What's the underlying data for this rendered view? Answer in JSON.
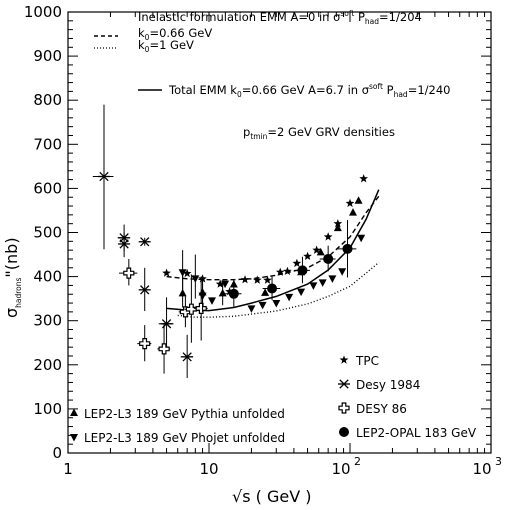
{
  "chart_data": {
    "type": "scatter",
    "xscale": "log",
    "xlim": [
      1,
      1000
    ],
    "ylim": [
      0,
      1000
    ],
    "xticks": [
      "1",
      "10",
      "10",
      "10"
    ],
    "xtick_exp": [
      "",
      "",
      "2",
      "3"
    ],
    "yticks": [
      "0",
      "100",
      "200",
      "300",
      "400",
      "500",
      "600",
      "700",
      "800",
      "900",
      "1000"
    ],
    "xlabel": "√s ( GeV )",
    "ylabel": {
      "main": "σ",
      "sub": "hadrons",
      "tail": "\"(nb)"
    },
    "annotations": {
      "line1": {
        "pre": "Inelastic formulation EMM  A=0 in σ",
        "sup": "soft",
        "mid": " P",
        "sub": "had",
        "post": "=1/204"
      },
      "line2": {
        "pre": "k",
        "sub": "0",
        "post": "=0.66 GeV"
      },
      "line3": {
        "pre": "k",
        "sub": "0",
        "post": "=1 GeV"
      },
      "line4": {
        "pre": "Total EMM k",
        "sub": "0",
        "mid": "=0.66 GeV A=6.7 in σ",
        "sup": "soft",
        "mid2": " P",
        "sub2": "had",
        "post": "=1/240"
      },
      "line5": {
        "pre": "p",
        "sub": "tmin",
        "post": "=2 GeV GRV densities"
      }
    },
    "legend": {
      "tpc": "TPC",
      "desy84": "Desy 1984",
      "desy86": "DESY 86",
      "opal": "LEP2-OPAL 183 GeV",
      "pythia": "LEP2-L3 189 GeV Pythia unfolded",
      "phojet": "LEP2-L3 189 GeV Phojet unfolded"
    },
    "series": [
      {
        "key": "desy84",
        "marker": "asterisk",
        "points": [
          {
            "x": 1.8,
            "y": 627,
            "lo": 462,
            "hi": 790,
            "xerr": 0.3
          },
          {
            "x": 2.5,
            "y": 488,
            "lo": 458,
            "hi": 518,
            "xerr": 0.25
          },
          {
            "x": 2.5,
            "y": 474,
            "lo": 444,
            "hi": 500
          },
          {
            "x": 3.5,
            "y": 479,
            "lo": 470,
            "hi": 488
          },
          {
            "x": 3.5,
            "y": 370,
            "lo": 322,
            "hi": 420
          },
          {
            "x": 5.0,
            "y": 293,
            "lo": 235,
            "hi": 353,
            "xerr": 0.6
          },
          {
            "x": 7.0,
            "y": 218,
            "lo": 170,
            "hi": 268,
            "xerr": 0.7
          }
        ]
      },
      {
        "key": "desy86",
        "marker": "cross-open",
        "points": [
          {
            "x": 2.7,
            "y": 408,
            "lo": 380,
            "hi": 440,
            "xerr": 0.4
          },
          {
            "x": 3.5,
            "y": 248,
            "lo": 208,
            "hi": 290,
            "xerr": 0.4
          },
          {
            "x": 4.8,
            "y": 236,
            "lo": 180,
            "hi": 295,
            "xerr": 0.5
          },
          {
            "x": 6.8,
            "y": 320,
            "lo": 285,
            "hi": 355,
            "xerr": 0.7
          },
          {
            "x": 7.5,
            "y": 326,
            "lo": 250,
            "hi": 405,
            "xerr": 0.8
          },
          {
            "x": 8.8,
            "y": 328,
            "lo": 255,
            "hi": 400,
            "xerr": 1.0
          }
        ]
      },
      {
        "key": "tpc",
        "marker": "star",
        "points": [
          {
            "x": 5.0,
            "y": 408
          },
          {
            "x": 7.0,
            "y": 407
          },
          {
            "x": 9.0,
            "y": 395
          },
          {
            "x": 12.0,
            "y": 383
          },
          {
            "x": 14.0,
            "y": 366
          },
          {
            "x": 18.0,
            "y": 393
          },
          {
            "x": 22.0,
            "y": 392
          },
          {
            "x": 26.0,
            "y": 392
          },
          {
            "x": 32.0,
            "y": 410
          },
          {
            "x": 36.0,
            "y": 412
          },
          {
            "x": 42.0,
            "y": 430
          },
          {
            "x": 50.0,
            "y": 446
          },
          {
            "x": 58.0,
            "y": 460
          },
          {
            "x": 70.0,
            "y": 490
          },
          {
            "x": 82.0,
            "y": 520
          },
          {
            "x": 100.0,
            "y": 566
          },
          {
            "x": 125.0,
            "y": 622
          }
        ]
      },
      {
        "key": "opal",
        "marker": "filled-circle",
        "points": [
          {
            "x": 15.0,
            "y": 361,
            "lo": 330,
            "hi": 392,
            "xerr": 2.0
          },
          {
            "x": 28.0,
            "y": 373,
            "lo": 347,
            "hi": 400,
            "xerr": 4.0
          },
          {
            "x": 46.0,
            "y": 414,
            "lo": 385,
            "hi": 445,
            "xerr": 6.0
          },
          {
            "x": 70.0,
            "y": 440,
            "lo": 412,
            "hi": 470,
            "xerr": 9.0
          },
          {
            "x": 96.0,
            "y": 463,
            "lo": 398,
            "hi": 528,
            "xerr": 15.0
          }
        ]
      },
      {
        "key": "pythia",
        "marker": "triangle-up",
        "points": [
          {
            "x": 6.5,
            "y": 362,
            "lo": 330,
            "hi": 410
          },
          {
            "x": 9.0,
            "y": 364,
            "lo": 330,
            "hi": 400
          },
          {
            "x": 12.5,
            "y": 362,
            "lo": 335,
            "hi": 392
          },
          {
            "x": 15.0,
            "y": 382
          },
          {
            "x": 25.0,
            "y": 363
          },
          {
            "x": 45.0,
            "y": 410
          },
          {
            "x": 62.0,
            "y": 455
          },
          {
            "x": 82.0,
            "y": 510
          },
          {
            "x": 105.0,
            "y": 545
          },
          {
            "x": 115.0,
            "y": 572
          }
        ]
      },
      {
        "key": "phojet",
        "marker": "triangle-down",
        "points": [
          {
            "x": 6.5,
            "y": 410,
            "lo": 370,
            "hi": 460
          },
          {
            "x": 8.0,
            "y": 396,
            "lo": 350,
            "hi": 450
          },
          {
            "x": 9.0,
            "y": 357,
            "lo": 320,
            "hi": 400
          },
          {
            "x": 10.5,
            "y": 346
          },
          {
            "x": 13.0,
            "y": 384
          },
          {
            "x": 20.0,
            "y": 328
          },
          {
            "x": 24.0,
            "y": 336
          },
          {
            "x": 30.0,
            "y": 340
          },
          {
            "x": 37.0,
            "y": 354
          },
          {
            "x": 45.0,
            "y": 366
          },
          {
            "x": 55.0,
            "y": 380
          },
          {
            "x": 64.0,
            "y": 387
          },
          {
            "x": 75.0,
            "y": 396
          },
          {
            "x": 88.0,
            "y": 412
          },
          {
            "x": 120.0,
            "y": 488
          }
        ]
      }
    ],
    "curves": [
      {
        "key": "k0_066",
        "style": "dashed",
        "points": [
          [
            5,
            400
          ],
          [
            7,
            395
          ],
          [
            10,
            393
          ],
          [
            15,
            393
          ],
          [
            20,
            395
          ],
          [
            30,
            403
          ],
          [
            50,
            420
          ],
          [
            70,
            445
          ],
          [
            100,
            490
          ],
          [
            130,
            545
          ],
          [
            160,
            582
          ]
        ]
      },
      {
        "key": "k0_1",
        "style": "dotted",
        "points": [
          [
            6,
            312
          ],
          [
            8,
            308
          ],
          [
            10,
            308
          ],
          [
            15,
            310
          ],
          [
            20,
            315
          ],
          [
            30,
            322
          ],
          [
            50,
            338
          ],
          [
            70,
            355
          ],
          [
            100,
            378
          ],
          [
            130,
            408
          ],
          [
            160,
            432
          ]
        ]
      },
      {
        "key": "total",
        "style": "solid",
        "points": [
          [
            5,
            328
          ],
          [
            7,
            324
          ],
          [
            10,
            323
          ],
          [
            15,
            330
          ],
          [
            20,
            340
          ],
          [
            30,
            355
          ],
          [
            50,
            383
          ],
          [
            70,
            415
          ],
          [
            100,
            465
          ],
          [
            130,
            530
          ],
          [
            160,
            597
          ]
        ]
      }
    ]
  }
}
